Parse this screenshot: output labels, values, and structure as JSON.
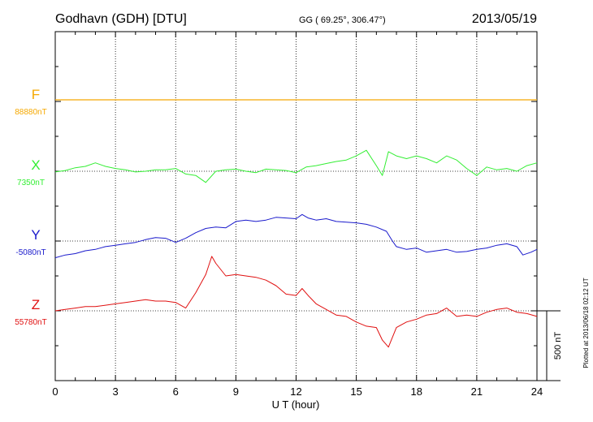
{
  "header": {
    "station": "Godhavn (GDH)  [DTU]",
    "coords": "GG ( 69.25°, 306.47°)",
    "date": "2013/05/19"
  },
  "plotted_note": "Plotted at 2013/06/18 02:12 UT",
  "scale_label": "500 nT",
  "chart_data": {
    "type": "line",
    "xlabel": "U T (hour)",
    "xlim": [
      0,
      24
    ],
    "xticks": [
      "0",
      "3",
      "6",
      "9",
      "12",
      "15",
      "18",
      "21",
      "24"
    ],
    "nt_per_division": 500,
    "series": [
      {
        "name": "F",
        "baseline_label": "88880nT",
        "color": "#f5a800",
        "points": [
          [
            0,
            0
          ],
          [
            24,
            0
          ]
        ]
      },
      {
        "name": "X",
        "baseline_label": "7350nT",
        "color": "#33ee33",
        "points": [
          [
            0,
            -5
          ],
          [
            0.5,
            5
          ],
          [
            1,
            25
          ],
          [
            1.5,
            35
          ],
          [
            2,
            60
          ],
          [
            2.5,
            35
          ],
          [
            3,
            20
          ],
          [
            3.5,
            10
          ],
          [
            4,
            -5
          ],
          [
            4.5,
            0
          ],
          [
            5,
            10
          ],
          [
            5.5,
            10
          ],
          [
            6,
            20
          ],
          [
            6.5,
            -20
          ],
          [
            7,
            -30
          ],
          [
            7.5,
            -80
          ],
          [
            8,
            0
          ],
          [
            8.5,
            10
          ],
          [
            9,
            15
          ],
          [
            9.5,
            0
          ],
          [
            10,
            -10
          ],
          [
            10.5,
            15
          ],
          [
            11,
            10
          ],
          [
            11.5,
            5
          ],
          [
            12,
            -10
          ],
          [
            12.5,
            30
          ],
          [
            13,
            40
          ],
          [
            13.5,
            55
          ],
          [
            14,
            70
          ],
          [
            14.5,
            80
          ],
          [
            15,
            110
          ],
          [
            15.5,
            150
          ],
          [
            16,
            40
          ],
          [
            16.3,
            -30
          ],
          [
            16.6,
            140
          ],
          [
            17,
            110
          ],
          [
            17.5,
            90
          ],
          [
            18,
            110
          ],
          [
            18.5,
            90
          ],
          [
            19,
            60
          ],
          [
            19.5,
            110
          ],
          [
            20,
            80
          ],
          [
            20.5,
            20
          ],
          [
            21,
            -30
          ],
          [
            21.5,
            30
          ],
          [
            22,
            10
          ],
          [
            22.5,
            20
          ],
          [
            23,
            0
          ],
          [
            23.5,
            40
          ],
          [
            24,
            60
          ]
        ]
      },
      {
        "name": "Y",
        "baseline_label": "-5080nT",
        "color": "#1a1acc",
        "points": [
          [
            0,
            -120
          ],
          [
            0.5,
            -100
          ],
          [
            1,
            -90
          ],
          [
            1.5,
            -70
          ],
          [
            2,
            -60
          ],
          [
            2.5,
            -40
          ],
          [
            3,
            -30
          ],
          [
            3.5,
            -20
          ],
          [
            4,
            -10
          ],
          [
            4.5,
            10
          ],
          [
            5,
            25
          ],
          [
            5.5,
            20
          ],
          [
            6,
            -10
          ],
          [
            6.5,
            20
          ],
          [
            7,
            60
          ],
          [
            7.5,
            90
          ],
          [
            8,
            100
          ],
          [
            8.5,
            95
          ],
          [
            9,
            140
          ],
          [
            9.5,
            150
          ],
          [
            10,
            140
          ],
          [
            10.5,
            150
          ],
          [
            11,
            170
          ],
          [
            11.5,
            165
          ],
          [
            12,
            160
          ],
          [
            12.3,
            190
          ],
          [
            12.6,
            165
          ],
          [
            13,
            150
          ],
          [
            13.5,
            160
          ],
          [
            14,
            140
          ],
          [
            14.5,
            135
          ],
          [
            15,
            130
          ],
          [
            15.5,
            120
          ],
          [
            16,
            100
          ],
          [
            16.5,
            70
          ],
          [
            16.8,
            0
          ],
          [
            17,
            -40
          ],
          [
            17.5,
            -60
          ],
          [
            18,
            -50
          ],
          [
            18.5,
            -80
          ],
          [
            19,
            -70
          ],
          [
            19.5,
            -60
          ],
          [
            20,
            -80
          ],
          [
            20.5,
            -75
          ],
          [
            21,
            -60
          ],
          [
            21.5,
            -50
          ],
          [
            22,
            -30
          ],
          [
            22.5,
            -20
          ],
          [
            23,
            -40
          ],
          [
            23.3,
            -100
          ],
          [
            23.7,
            -80
          ],
          [
            24,
            -60
          ]
        ]
      },
      {
        "name": "Z",
        "baseline_label": "55780nT",
        "color": "#e01010",
        "points": [
          [
            0,
            0
          ],
          [
            0.5,
            10
          ],
          [
            1,
            20
          ],
          [
            1.5,
            30
          ],
          [
            2,
            30
          ],
          [
            2.5,
            40
          ],
          [
            3,
            50
          ],
          [
            3.5,
            60
          ],
          [
            4,
            70
          ],
          [
            4.5,
            80
          ],
          [
            5,
            70
          ],
          [
            5.5,
            70
          ],
          [
            6,
            60
          ],
          [
            6.5,
            20
          ],
          [
            7,
            130
          ],
          [
            7.5,
            260
          ],
          [
            7.8,
            390
          ],
          [
            8,
            340
          ],
          [
            8.5,
            250
          ],
          [
            9,
            260
          ],
          [
            9.5,
            250
          ],
          [
            10,
            240
          ],
          [
            10.5,
            220
          ],
          [
            11,
            180
          ],
          [
            11.5,
            120
          ],
          [
            12,
            110
          ],
          [
            12.3,
            160
          ],
          [
            12.6,
            110
          ],
          [
            13,
            50
          ],
          [
            13.5,
            10
          ],
          [
            14,
            -30
          ],
          [
            14.5,
            -40
          ],
          [
            15,
            -80
          ],
          [
            15.5,
            -110
          ],
          [
            16,
            -120
          ],
          [
            16.3,
            -210
          ],
          [
            16.6,
            -260
          ],
          [
            17,
            -120
          ],
          [
            17.5,
            -80
          ],
          [
            18,
            -60
          ],
          [
            18.5,
            -30
          ],
          [
            19,
            -20
          ],
          [
            19.5,
            20
          ],
          [
            20,
            -40
          ],
          [
            20.5,
            -30
          ],
          [
            21,
            -40
          ],
          [
            21.5,
            -10
          ],
          [
            22,
            10
          ],
          [
            22.5,
            20
          ],
          [
            23,
            -10
          ],
          [
            23.5,
            -20
          ],
          [
            24,
            -40
          ]
        ]
      }
    ]
  }
}
